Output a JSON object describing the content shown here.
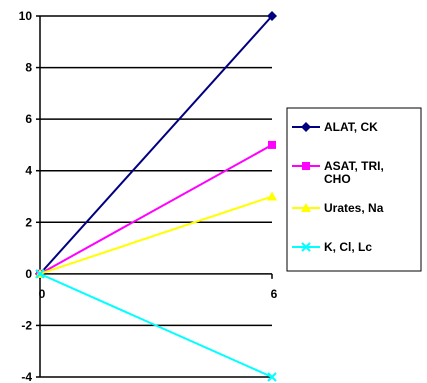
{
  "chart_data": {
    "type": "line",
    "x": [
      0,
      6
    ],
    "x_tick_labels": [
      "0",
      "6"
    ],
    "ylim": [
      -4,
      10
    ],
    "y_ticks": [
      -4,
      -2,
      0,
      2,
      4,
      6,
      8,
      10
    ],
    "y_tick_labels": [
      "-4",
      "-2",
      "0",
      "2",
      "4",
      "6",
      "8",
      "10"
    ],
    "grid": "horizontal",
    "legend_position": "right",
    "series": [
      {
        "name": "ALAT, CK",
        "values": [
          0,
          10
        ],
        "color": "#000080",
        "marker": "diamond"
      },
      {
        "name": "ASAT, TRI, CHO",
        "values": [
          0,
          5
        ],
        "color": "#ff00ff",
        "marker": "square"
      },
      {
        "name": "Urates, Na",
        "values": [
          0,
          3
        ],
        "color": "#ffff00",
        "marker": "triangle"
      },
      {
        "name": "K, Cl, Lc",
        "values": [
          0,
          -4
        ],
        "color": "#00ffff",
        "marker": "x"
      }
    ]
  }
}
